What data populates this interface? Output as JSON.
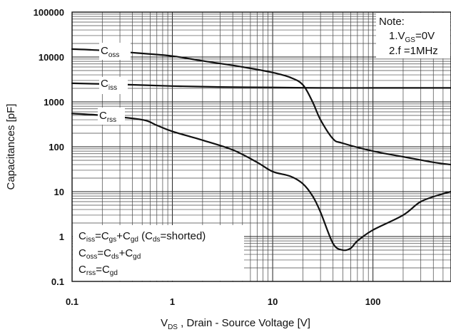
{
  "chart_data": {
    "type": "line",
    "xlabel": "V_DS , Drain - Source Voltage [V]",
    "ylabel": "Capacitances [pF]",
    "x_scale": "log",
    "y_scale": "log",
    "xlim": [
      0.1,
      600
    ],
    "ylim": [
      0.1,
      100000
    ],
    "grid": true,
    "x_ticks": [
      "0.1",
      "1",
      "10",
      "100"
    ],
    "y_ticks": [
      "0.1",
      "1",
      "10",
      "100",
      "1000",
      "10000",
      "100000"
    ],
    "series": [
      {
        "name": "Coss",
        "x": [
          0.1,
          0.2,
          0.5,
          1,
          2,
          5,
          10,
          15,
          20,
          25,
          30,
          40,
          50,
          100,
          200,
          400,
          600
        ],
        "values": [
          15000,
          14000,
          12000,
          10500,
          8200,
          6000,
          4500,
          3500,
          2400,
          1000,
          400,
          150,
          120,
          80,
          60,
          45,
          40
        ]
      },
      {
        "name": "Ciss",
        "x": [
          0.1,
          0.3,
          1,
          3,
          10,
          30,
          100,
          300,
          600
        ],
        "values": [
          2600,
          2450,
          2250,
          2150,
          2100,
          2050,
          2050,
          2050,
          2050
        ]
      },
      {
        "name": "Crss",
        "x": [
          0.1,
          0.2,
          0.5,
          0.7,
          1,
          2,
          4,
          7,
          10,
          15,
          20,
          25,
          30,
          40,
          50,
          60,
          70,
          100,
          200,
          300,
          500,
          600
        ],
        "values": [
          550,
          500,
          400,
          300,
          220,
          140,
          85,
          45,
          28,
          22,
          15,
          8,
          3.5,
          0.7,
          0.5,
          0.55,
          0.8,
          1.4,
          3,
          6,
          9,
          10
        ]
      }
    ],
    "curve_labels": [
      {
        "series": "Coss",
        "main": "C",
        "sub": "oss"
      },
      {
        "series": "Ciss",
        "main": "C",
        "sub": "iss"
      },
      {
        "series": "Crss",
        "main": "C",
        "sub": "rss"
      }
    ],
    "notes": {
      "title": "Note:",
      "line1": {
        "prefix": "1.V",
        "sub": "GS",
        "suffix": "=0V"
      },
      "line2": "2.f =1MHz"
    },
    "legend": {
      "ciss": {
        "a": "C",
        "a_sub": "iss",
        "b": "=C",
        "b_sub": "gs",
        "c": "+C",
        "c_sub": "gd",
        "d": " (C",
        "d_sub": "ds",
        "e": "=shorted)"
      },
      "coss": {
        "a": "C",
        "a_sub": "oss",
        "b": "=C",
        "b_sub": "ds",
        "c": "+C",
        "c_sub": "gd"
      },
      "crss": {
        "a": "C",
        "a_sub": "rss",
        "b": "=C",
        "b_sub": "gd"
      }
    },
    "xlabel_parts": {
      "main": "V",
      "sub": "DS",
      "rest": " , Drain - Source Voltage [V]"
    }
  }
}
